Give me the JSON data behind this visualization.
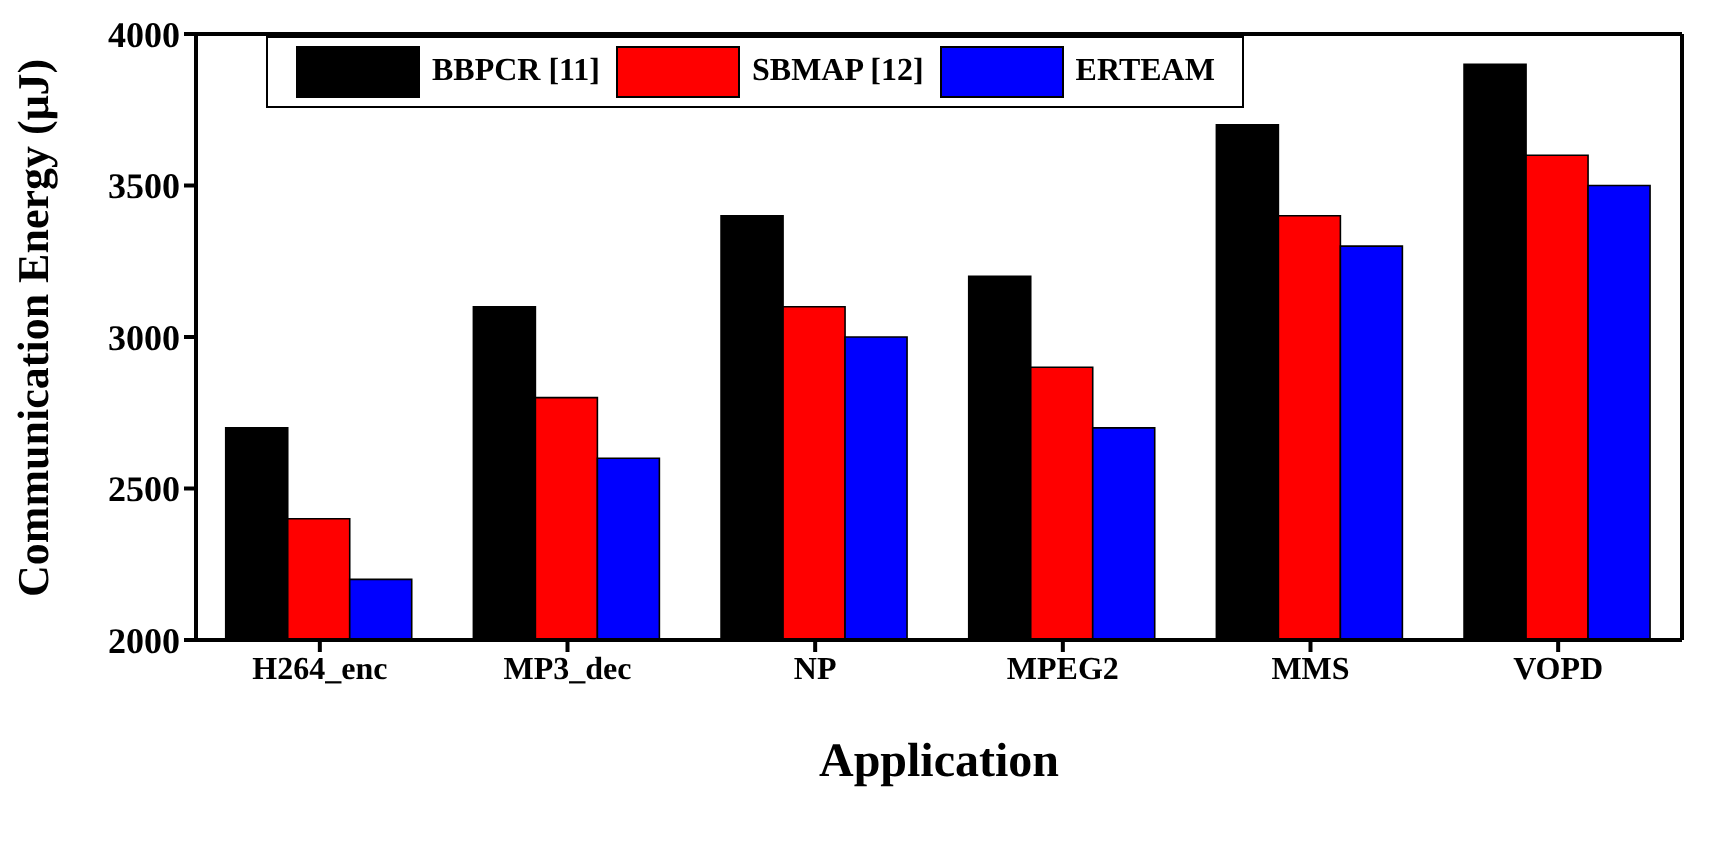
{
  "chart_data": {
    "type": "bar",
    "xlabel": "Application",
    "ylabel": "Communication Energy (μJ)",
    "categories": [
      "H264_enc",
      "MP3_dec",
      "NP",
      "MPEG2",
      "MMS",
      "VOPD"
    ],
    "series": [
      {
        "name": "BBPCR [11]",
        "color": "#000000",
        "values": [
          2700,
          3100,
          3400,
          3200,
          3700,
          3900
        ]
      },
      {
        "name": "SBMAP [12]",
        "color": "#ff0000",
        "values": [
          2400,
          2800,
          3100,
          2900,
          3400,
          3600
        ]
      },
      {
        "name": "ERTEAM",
        "color": "#0000ff",
        "values": [
          2200,
          2600,
          3000,
          2700,
          3300,
          3500
        ]
      }
    ],
    "ylim": [
      2000,
      4000
    ],
    "yticks": [
      2000,
      2500,
      3000,
      3500,
      4000
    ],
    "legend": "top",
    "grid": false
  }
}
